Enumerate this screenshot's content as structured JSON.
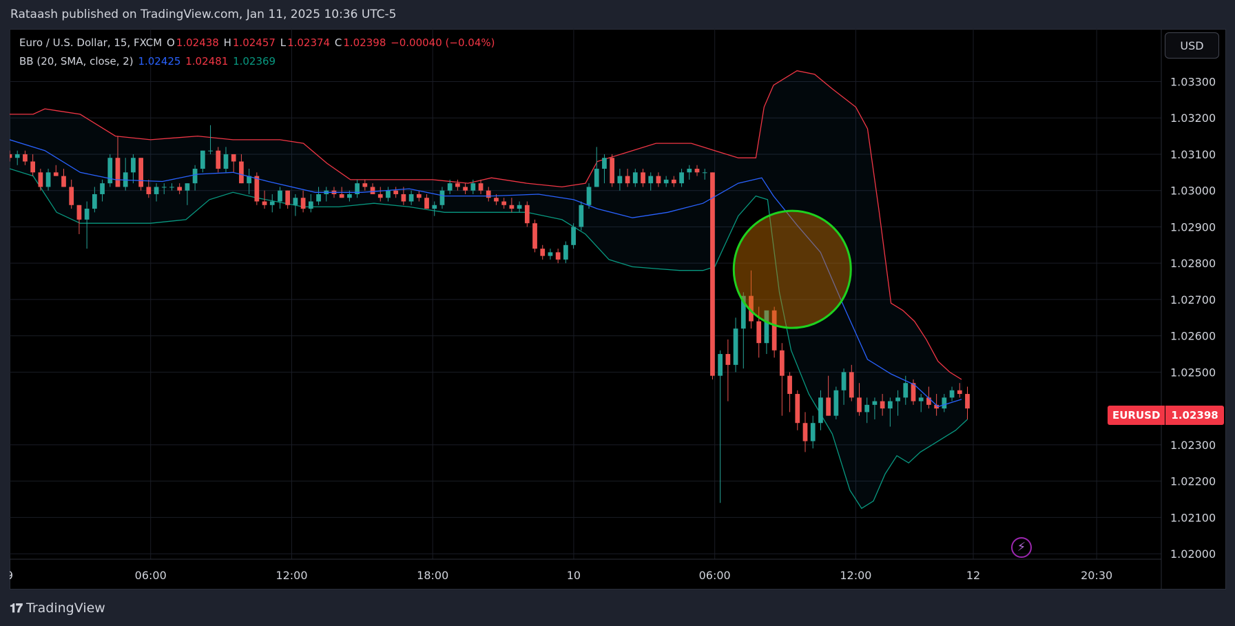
{
  "header": {
    "published_text": "Rataash published on TradingView.com, Jan 11, 2025 10:36 UTC-5"
  },
  "symbol_legend": {
    "name": "Euro / U.S. Dollar, 15, FXCM",
    "o_label": "O",
    "o_value": "1.02438",
    "h_label": "H",
    "h_value": "1.02457",
    "l_label": "L",
    "l_value": "1.02374",
    "c_label": "C",
    "c_value": "1.02398",
    "change": "−0.00040 (−0.04%)"
  },
  "indicator_legend": {
    "name": "BB (20, SMA, close, 2)",
    "basis": "1.02425",
    "upper": "1.02481",
    "lower": "1.02369"
  },
  "currency_button": "USD",
  "last_price": {
    "symbol": "EURUSD",
    "value": "1.02398"
  },
  "footer": {
    "logo": "TradingView",
    "brand": "TradingView"
  },
  "colors": {
    "up": "#26a69a",
    "down": "#ef5350",
    "upper_band": "#f23645",
    "basis": "#2962ff",
    "lower_band": "#089981",
    "highlight_circle": "#1fd11f"
  },
  "icons": {
    "bolt": "lightning-bolt-icon",
    "logo": "tradingview-logo-icon"
  },
  "chart_data": {
    "type": "candlestick",
    "y_ticks": [
      "1.03300",
      "1.03200",
      "1.03100",
      "1.03000",
      "1.02900",
      "1.02800",
      "1.02700",
      "1.02600",
      "1.02500",
      "1.02300",
      "1.02200",
      "1.02100",
      "1.02000"
    ],
    "x_ticks": [
      "9",
      "06:00",
      "12:00",
      "18:00",
      "10",
      "06:00",
      "12:00",
      "12",
      "20:30"
    ],
    "x_range": [
      0,
      98
    ],
    "y_range": [
      1.01985,
      1.03445
    ],
    "x_tick_positions": [
      0,
      12,
      24,
      36,
      48,
      60,
      72,
      82,
      92.5
    ],
    "upper_band": [
      [
        0,
        1.0321
      ],
      [
        2,
        1.0321
      ],
      [
        3,
        1.03225
      ],
      [
        4,
        1.0322
      ],
      [
        6,
        1.0321
      ],
      [
        9,
        1.0315
      ],
      [
        12,
        1.0314
      ],
      [
        16,
        1.0315
      ],
      [
        19,
        1.0314
      ],
      [
        21,
        1.0314
      ],
      [
        23,
        1.0314
      ],
      [
        25,
        1.0313
      ],
      [
        27,
        1.03075
      ],
      [
        29,
        1.0303
      ],
      [
        32,
        1.0303
      ],
      [
        36,
        1.0303
      ],
      [
        39,
        1.0302
      ],
      [
        41,
        1.03035
      ],
      [
        44,
        1.0302
      ],
      [
        47,
        1.0301
      ],
      [
        49,
        1.0302
      ],
      [
        50,
        1.0308
      ],
      [
        52,
        1.031
      ],
      [
        55,
        1.0313
      ],
      [
        58,
        1.0313
      ],
      [
        60,
        1.0311
      ],
      [
        62,
        1.0309
      ],
      [
        63.5,
        1.0309
      ],
      [
        64.2,
        1.0323
      ],
      [
        65,
        1.0329
      ],
      [
        67,
        1.0333
      ],
      [
        68.5,
        1.0332
      ],
      [
        70,
        1.0328
      ],
      [
        72,
        1.0323
      ],
      [
        73,
        1.0317
      ],
      [
        74,
        1.0294
      ],
      [
        75,
        1.0269
      ],
      [
        76,
        1.0267
      ],
      [
        77,
        1.0264
      ],
      [
        78,
        1.0259
      ],
      [
        79,
        1.0253
      ],
      [
        80,
        1.025
      ],
      [
        81,
        1.0248
      ]
    ],
    "basis": [
      [
        0,
        1.0314
      ],
      [
        3,
        1.0311
      ],
      [
        6,
        1.0305
      ],
      [
        9,
        1.0303
      ],
      [
        13,
        1.03025
      ],
      [
        16,
        1.03045
      ],
      [
        19,
        1.0305
      ],
      [
        22,
        1.03025
      ],
      [
        26,
        1.02995
      ],
      [
        30,
        1.02995
      ],
      [
        34,
        1.03005
      ],
      [
        37,
        1.02985
      ],
      [
        41,
        1.02985
      ],
      [
        45,
        1.0299
      ],
      [
        48,
        1.02975
      ],
      [
        50,
        1.0295
      ],
      [
        53,
        1.02925
      ],
      [
        56,
        1.0294
      ],
      [
        59,
        1.02965
      ],
      [
        62,
        1.0302
      ],
      [
        64,
        1.03035
      ],
      [
        65,
        1.02985
      ],
      [
        67,
        1.02905
      ],
      [
        69,
        1.0283
      ],
      [
        71,
        1.0268
      ],
      [
        73,
        1.02535
      ],
      [
        75,
        1.02495
      ],
      [
        77,
        1.02465
      ],
      [
        79,
        1.02405
      ],
      [
        81,
        1.02425
      ]
    ],
    "lower_band": [
      [
        0,
        1.0306
      ],
      [
        2,
        1.0304
      ],
      [
        4,
        1.0294
      ],
      [
        6,
        1.0291
      ],
      [
        9,
        1.0291
      ],
      [
        12,
        1.0291
      ],
      [
        15,
        1.0292
      ],
      [
        17,
        1.02975
      ],
      [
        19,
        1.02995
      ],
      [
        21,
        1.0298
      ],
      [
        25,
        1.02955
      ],
      [
        28,
        1.02955
      ],
      [
        31,
        1.02965
      ],
      [
        34,
        1.02955
      ],
      [
        37,
        1.0294
      ],
      [
        40,
        1.0294
      ],
      [
        44,
        1.0294
      ],
      [
        47,
        1.0292
      ],
      [
        49,
        1.0288
      ],
      [
        51,
        1.0281
      ],
      [
        53,
        1.0279
      ],
      [
        55,
        1.02785
      ],
      [
        57,
        1.0278
      ],
      [
        59,
        1.0278
      ],
      [
        60,
        1.0279
      ],
      [
        61,
        1.0286
      ],
      [
        62,
        1.0293
      ],
      [
        63.5,
        1.02985
      ],
      [
        64.5,
        1.02975
      ],
      [
        65.5,
        1.0272
      ],
      [
        66.5,
        1.0256
      ],
      [
        68,
        1.0244
      ],
      [
        70,
        1.0233
      ],
      [
        71.5,
        1.02175
      ],
      [
        72.5,
        1.02125
      ],
      [
        73.5,
        1.02145
      ],
      [
        74.5,
        1.0222
      ],
      [
        75.5,
        1.0227
      ],
      [
        76.5,
        1.0225
      ],
      [
        77.5,
        1.0228
      ],
      [
        78.5,
        1.023
      ],
      [
        79.5,
        1.0232
      ],
      [
        80.5,
        1.0234
      ],
      [
        81.5,
        1.0237
      ]
    ],
    "candles": [
      [
        1.031,
        1.0311,
        1.0308,
        1.0309
      ],
      [
        1.0309,
        1.0311,
        1.0307,
        1.031
      ],
      [
        1.031,
        1.0311,
        1.0307,
        1.0308
      ],
      [
        1.0308,
        1.031,
        1.0304,
        1.0305
      ],
      [
        1.0305,
        1.0306,
        1.03,
        1.0301
      ],
      [
        1.0301,
        1.0306,
        1.03,
        1.0305
      ],
      [
        1.0305,
        1.0307,
        1.0304,
        1.0304
      ],
      [
        1.0304,
        1.0306,
        1.0301,
        1.0301
      ],
      [
        1.0301,
        1.0303,
        1.0295,
        1.0296
      ],
      [
        1.0296,
        1.0296,
        1.0288,
        1.0292
      ],
      [
        1.0292,
        1.0297,
        1.0284,
        1.0295
      ],
      [
        1.0295,
        1.0301,
        1.0294,
        1.0299
      ],
      [
        1.0299,
        1.0303,
        1.0297,
        1.0302
      ],
      [
        1.0302,
        1.031,
        1.0301,
        1.0309
      ],
      [
        1.0309,
        1.0315,
        1.0301,
        1.0301
      ],
      [
        1.0301,
        1.0309,
        1.03,
        1.0305
      ],
      [
        1.0305,
        1.031,
        1.0302,
        1.0309
      ],
      [
        1.0309,
        1.0309,
        1.03,
        1.0301
      ],
      [
        1.0301,
        1.0303,
        1.0298,
        1.0299
      ],
      [
        1.0299,
        1.0302,
        1.0297,
        1.0301
      ],
      [
        1.0301,
        1.0302,
        1.0299,
        1.0301
      ],
      [
        1.0301,
        1.0302,
        1.03,
        1.0301
      ],
      [
        1.0301,
        1.0302,
        1.0299,
        1.03
      ],
      [
        1.03,
        1.0302,
        1.0296,
        1.0302
      ],
      [
        1.0302,
        1.0307,
        1.03,
        1.0306
      ],
      [
        1.0306,
        1.0311,
        1.0305,
        1.0311
      ],
      [
        1.0311,
        1.0318,
        1.031,
        1.0311
      ],
      [
        1.0311,
        1.0312,
        1.0305,
        1.0306
      ],
      [
        1.0306,
        1.0312,
        1.0305,
        1.031
      ],
      [
        1.031,
        1.031,
        1.0305,
        1.0308
      ],
      [
        1.0308,
        1.031,
        1.0302,
        1.0302
      ],
      [
        1.0302,
        1.0306,
        1.0299,
        1.0304
      ],
      [
        1.0304,
        1.0305,
        1.0296,
        1.0297
      ],
      [
        1.0297,
        1.03,
        1.0295,
        1.0296
      ],
      [
        1.0296,
        1.0299,
        1.0294,
        1.0297
      ],
      [
        1.0297,
        1.0301,
        1.0295,
        1.03
      ],
      [
        1.03,
        1.03,
        1.0295,
        1.0296
      ],
      [
        1.0296,
        1.0299,
        1.0293,
        1.0298
      ],
      [
        1.0298,
        1.03,
        1.0294,
        1.0295
      ],
      [
        1.0295,
        1.0299,
        1.0294,
        1.0297
      ],
      [
        1.0297,
        1.0301,
        1.0296,
        1.0299
      ],
      [
        1.0299,
        1.0301,
        1.0297,
        1.03
      ],
      [
        1.03,
        1.0301,
        1.0298,
        1.0299
      ],
      [
        1.0299,
        1.0301,
        1.0298,
        1.0298
      ],
      [
        1.0298,
        1.03,
        1.0297,
        1.0299
      ],
      [
        1.0299,
        1.0303,
        1.0298,
        1.0302
      ],
      [
        1.0302,
        1.0303,
        1.03,
        1.0301
      ],
      [
        1.0301,
        1.0302,
        1.0299,
        1.0299
      ],
      [
        1.0299,
        1.0301,
        1.0297,
        1.0298
      ],
      [
        1.0298,
        1.0301,
        1.0297,
        1.03
      ],
      [
        1.03,
        1.0301,
        1.0298,
        1.0299
      ],
      [
        1.0299,
        1.0301,
        1.0296,
        1.0297
      ],
      [
        1.0297,
        1.03,
        1.0296,
        1.0299
      ],
      [
        1.0299,
        1.03,
        1.0297,
        1.0298
      ],
      [
        1.0298,
        1.0299,
        1.0295,
        1.0295
      ],
      [
        1.0295,
        1.0297,
        1.0293,
        1.0296
      ],
      [
        1.0296,
        1.0301,
        1.0295,
        1.03
      ],
      [
        1.03,
        1.0303,
        1.0299,
        1.0302
      ],
      [
        1.0302,
        1.0303,
        1.03,
        1.0301
      ],
      [
        1.0301,
        1.0302,
        1.0299,
        1.03
      ],
      [
        1.03,
        1.0303,
        1.0299,
        1.0302
      ],
      [
        1.0302,
        1.0303,
        1.0299,
        1.03
      ],
      [
        1.03,
        1.0301,
        1.0297,
        1.0298
      ],
      [
        1.0298,
        1.0299,
        1.0296,
        1.0297
      ],
      [
        1.0297,
        1.0298,
        1.0295,
        1.0296
      ],
      [
        1.0296,
        1.0298,
        1.0294,
        1.0295
      ],
      [
        1.0295,
        1.0297,
        1.0294,
        1.0296
      ],
      [
        1.0296,
        1.0297,
        1.029,
        1.0291
      ],
      [
        1.0291,
        1.0292,
        1.0283,
        1.0284
      ],
      [
        1.0284,
        1.0285,
        1.0281,
        1.0282
      ],
      [
        1.0282,
        1.0284,
        1.0281,
        1.0283
      ],
      [
        1.0283,
        1.0284,
        1.028,
        1.0281
      ],
      [
        1.0281,
        1.0286,
        1.028,
        1.0285
      ],
      [
        1.0285,
        1.0291,
        1.0284,
        1.029
      ],
      [
        1.029,
        1.0297,
        1.0289,
        1.0296
      ],
      [
        1.0296,
        1.0302,
        1.0295,
        1.0301
      ],
      [
        1.0301,
        1.0312,
        1.0301,
        1.0306
      ],
      [
        1.0306,
        1.031,
        1.0302,
        1.0309
      ],
      [
        1.0309,
        1.031,
        1.0301,
        1.0302
      ],
      [
        1.0302,
        1.0306,
        1.03,
        1.0304
      ],
      [
        1.0304,
        1.0306,
        1.0301,
        1.0302
      ],
      [
        1.0302,
        1.0306,
        1.0301,
        1.0305
      ],
      [
        1.0305,
        1.0306,
        1.0301,
        1.0302
      ],
      [
        1.0302,
        1.0305,
        1.03,
        1.0304
      ],
      [
        1.0304,
        1.0305,
        1.0301,
        1.0302
      ],
      [
        1.0302,
        1.0304,
        1.0301,
        1.0303
      ],
      [
        1.0303,
        1.0304,
        1.0301,
        1.0302
      ],
      [
        1.0302,
        1.0306,
        1.0301,
        1.0305
      ],
      [
        1.0305,
        1.0307,
        1.0303,
        1.0306
      ],
      [
        1.0306,
        1.0307,
        1.0304,
        1.0305
      ],
      [
        1.0305,
        1.0306,
        1.0303,
        1.0305
      ],
      [
        1.0305,
        1.0305,
        1.0248,
        1.0249
      ],
      [
        1.0249,
        1.0256,
        1.0214,
        1.0255
      ],
      [
        1.0255,
        1.0259,
        1.0242,
        1.0252
      ],
      [
        1.0252,
        1.0265,
        1.025,
        1.0262
      ],
      [
        1.0262,
        1.0272,
        1.0251,
        1.0271
      ],
      [
        1.0271,
        1.0278,
        1.0262,
        1.0264
      ],
      [
        1.0264,
        1.0268,
        1.0254,
        1.0258
      ],
      [
        1.0258,
        1.0266,
        1.0255,
        1.0267
      ],
      [
        1.0267,
        1.0268,
        1.0254,
        1.0256
      ],
      [
        1.0256,
        1.0258,
        1.0238,
        1.0249
      ],
      [
        1.0249,
        1.025,
        1.0239,
        1.0244
      ],
      [
        1.0244,
        1.0245,
        1.0234,
        1.0236
      ],
      [
        1.0236,
        1.0239,
        1.0228,
        1.0231
      ],
      [
        1.0231,
        1.0238,
        1.0229,
        1.0236
      ],
      [
        1.0236,
        1.0245,
        1.0234,
        1.0243
      ],
      [
        1.0243,
        1.0249,
        1.0238,
        1.0238
      ],
      [
        1.0238,
        1.0246,
        1.0237,
        1.0245
      ],
      [
        1.0245,
        1.0251,
        1.0241,
        1.025
      ],
      [
        1.025,
        1.0252,
        1.0242,
        1.0243
      ],
      [
        1.0243,
        1.0247,
        1.0238,
        1.0239
      ],
      [
        1.0239,
        1.0243,
        1.0236,
        1.0241
      ],
      [
        1.0241,
        1.0243,
        1.0237,
        1.0242
      ],
      [
        1.0242,
        1.0244,
        1.0238,
        1.024
      ],
      [
        1.024,
        1.0243,
        1.0235,
        1.0242
      ],
      [
        1.0242,
        1.0245,
        1.0238,
        1.0243
      ],
      [
        1.0243,
        1.0249,
        1.0241,
        1.0247
      ],
      [
        1.0247,
        1.0248,
        1.0241,
        1.0242
      ],
      [
        1.0242,
        1.0244,
        1.0239,
        1.0243
      ],
      [
        1.0243,
        1.0246,
        1.024,
        1.0241
      ],
      [
        1.0241,
        1.0244,
        1.0238,
        1.024
      ],
      [
        1.024,
        1.0244,
        1.0239,
        1.0243
      ],
      [
        1.0243,
        1.0246,
        1.0242,
        1.0245
      ],
      [
        1.0245,
        1.0247,
        1.0243,
        1.0244
      ],
      [
        1.0244,
        1.0246,
        1.0237,
        1.024
      ]
    ],
    "highlight": {
      "shape": "circle",
      "center_x": 66.6,
      "center_y": 1.02783,
      "note": ""
    }
  }
}
